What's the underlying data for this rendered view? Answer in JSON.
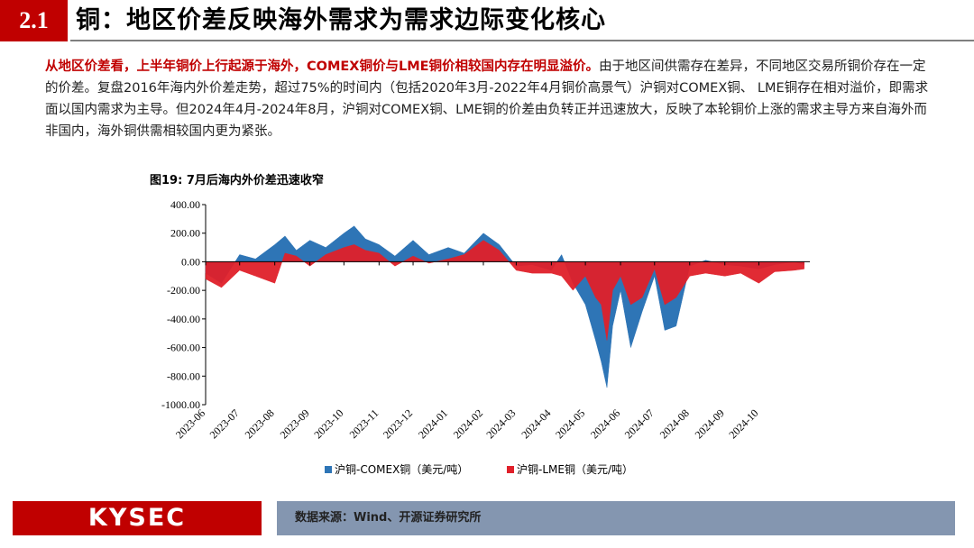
{
  "header": {
    "section_number": "2.1",
    "title": "铜：地区价差反映海外需求为需求边际变化核心"
  },
  "paragraph": {
    "highlight": "从地区价差看，上半年铜价上行起源于海外，COMEX铜价与LME铜价相较国内存在明显溢价。",
    "body": "由于地区间供需存在差异，不同地区交易所铜价存在一定的价差。复盘2016年海内外价差走势，超过75%的时间内（包括2020年3月-2022年4月铜价高景气）沪铜对COMEX铜、 LME铜存在相对溢价，即需求面以国内需求为主导。但2024年4月-2024年8月，沪铜对COMEX铜、LME铜的价差由负转正并迅速放大，反映了本轮铜价上涨的需求主导方来自海外而非国内，海外铜供需相较国内更为紧张。"
  },
  "figure": {
    "title": "图19:  7月后海内外价差迅速收窄"
  },
  "footer": {
    "logo": "KYSEC",
    "source": "数据来源：Wind、开源证券研究所"
  },
  "chart_data": {
    "type": "area",
    "title": "",
    "xlabel": "",
    "ylabel": "",
    "ylim": [
      -1000,
      400
    ],
    "y_ticks": [
      "400.00",
      "200.00",
      "0.00",
      "-200.00",
      "-400.00",
      "-600.00",
      "-800.00",
      "-1000.00"
    ],
    "x_ticks": [
      "2023-06",
      "2023-07",
      "2023-08",
      "2023-09",
      "2023-10",
      "2023-11",
      "2023-12",
      "2024-01",
      "2024-02",
      "2024-03",
      "2024-04",
      "2024-05",
      "2024-06",
      "2024-07",
      "2024-08",
      "2024-09",
      "2024-10"
    ],
    "x_range": [
      "2023-06-01",
      "2024-11-15"
    ],
    "grid": false,
    "legend_position": "bottom",
    "series": [
      {
        "name": "沪铜-COMEX铜（美元/吨）",
        "color": "#2e75b6",
        "x": [
          "2023-06-01",
          "2023-06-15",
          "2023-07-01",
          "2023-07-15",
          "2023-08-01",
          "2023-08-10",
          "2023-08-20",
          "2023-09-01",
          "2023-09-15",
          "2023-10-01",
          "2023-10-10",
          "2023-10-20",
          "2023-11-01",
          "2023-11-15",
          "2023-12-01",
          "2023-12-15",
          "2024-01-01",
          "2024-01-15",
          "2024-02-01",
          "2024-02-15",
          "2024-03-01",
          "2024-03-15",
          "2024-04-01",
          "2024-04-10",
          "2024-04-20",
          "2024-05-01",
          "2024-05-10",
          "2024-05-15",
          "2024-05-20",
          "2024-05-25",
          "2024-06-01",
          "2024-06-10",
          "2024-06-20",
          "2024-07-01",
          "2024-07-10",
          "2024-07-20",
          "2024-08-01",
          "2024-08-15",
          "2024-09-01",
          "2024-09-15",
          "2024-10-01",
          "2024-10-15",
          "2024-11-01",
          "2024-11-10"
        ],
        "values": [
          -80,
          -150,
          50,
          20,
          120,
          180,
          80,
          150,
          100,
          200,
          250,
          160,
          120,
          40,
          150,
          50,
          100,
          60,
          200,
          120,
          -30,
          -20,
          -60,
          50,
          -150,
          -300,
          -550,
          -700,
          -880,
          -450,
          -200,
          -600,
          -350,
          -100,
          -480,
          -450,
          -30,
          10,
          -20,
          -30,
          -50,
          -20,
          0,
          -20
        ]
      },
      {
        "name": "沪铜-LME铜（美元/吨）",
        "color": "#e0202a",
        "x": [
          "2023-06-01",
          "2023-06-15",
          "2023-07-01",
          "2023-07-15",
          "2023-08-01",
          "2023-08-10",
          "2023-08-20",
          "2023-09-01",
          "2023-09-15",
          "2023-10-01",
          "2023-10-10",
          "2023-10-20",
          "2023-11-01",
          "2023-11-15",
          "2023-12-01",
          "2023-12-15",
          "2024-01-01",
          "2024-01-15",
          "2024-02-01",
          "2024-02-15",
          "2024-03-01",
          "2024-03-15",
          "2024-04-01",
          "2024-04-10",
          "2024-04-20",
          "2024-05-01",
          "2024-05-10",
          "2024-05-15",
          "2024-05-20",
          "2024-05-25",
          "2024-06-01",
          "2024-06-10",
          "2024-06-20",
          "2024-07-01",
          "2024-07-10",
          "2024-07-20",
          "2024-08-01",
          "2024-08-15",
          "2024-09-01",
          "2024-09-15",
          "2024-10-01",
          "2024-10-15",
          "2024-11-01",
          "2024-11-10"
        ],
        "values": [
          -120,
          -180,
          -60,
          -100,
          -150,
          60,
          40,
          -30,
          50,
          100,
          120,
          80,
          60,
          -30,
          40,
          -10,
          20,
          50,
          150,
          80,
          -60,
          -80,
          -80,
          -100,
          -200,
          -100,
          -250,
          -300,
          -550,
          -200,
          -100,
          -300,
          -250,
          -50,
          -300,
          -250,
          -100,
          -80,
          -100,
          -80,
          -150,
          -70,
          -60,
          -50
        ]
      }
    ]
  }
}
